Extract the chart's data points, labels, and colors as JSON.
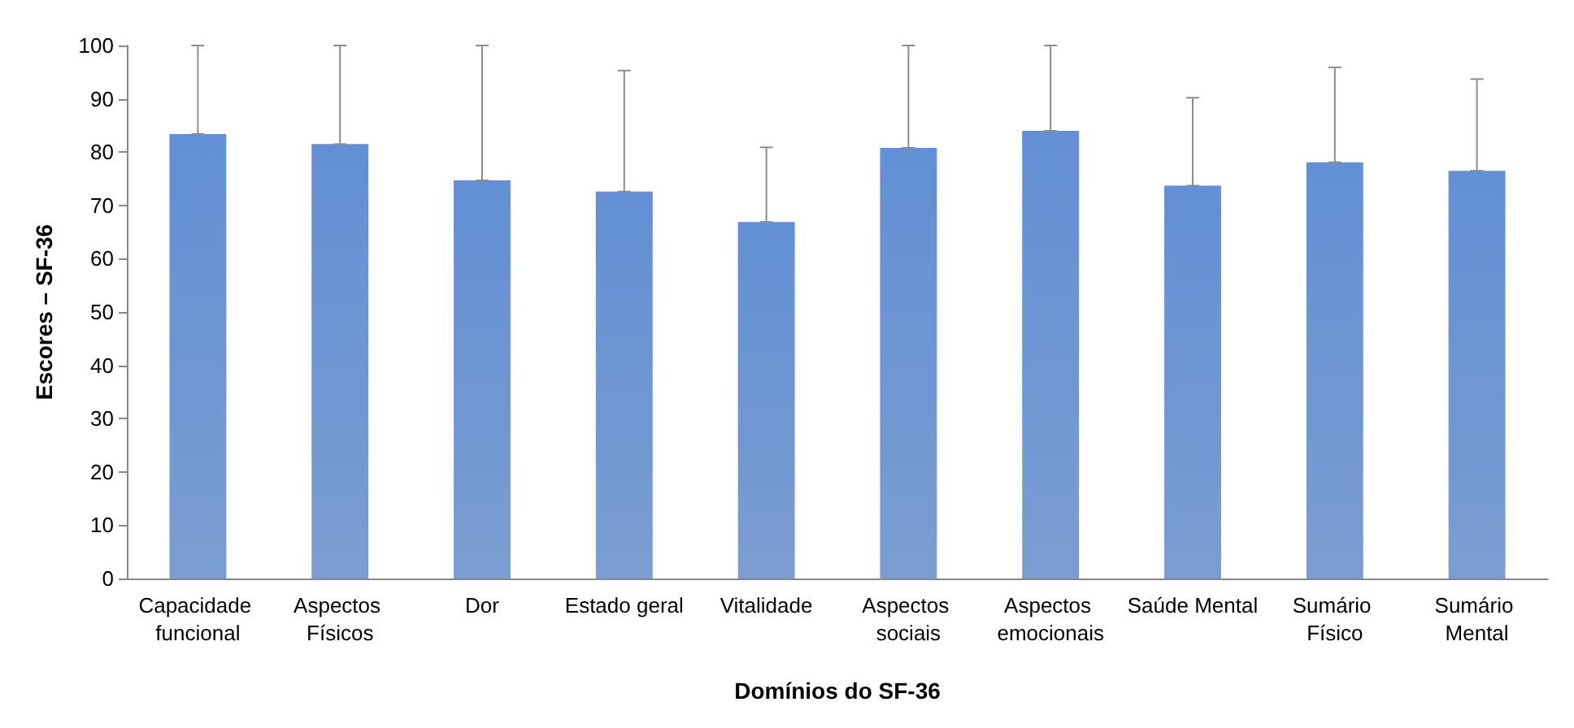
{
  "chart_data": {
    "type": "bar",
    "xlabel": "Domínios do SF-36",
    "ylabel": "Escores – SF-36",
    "categories": [
      "Capacidade funcional",
      "Aspectos Físicos",
      "Dor",
      "Estado geral",
      "Vitalidade",
      "Aspectos sociais",
      "Aspectos emocionais",
      "Saúde Mental",
      "Sumário Físico",
      "Sumário Mental"
    ],
    "values": [
      83.4,
      81.5,
      74.7,
      72.6,
      66.9,
      80.8,
      84.0,
      73.7,
      78.1,
      76.5
    ],
    "errors": [
      [
        83.4,
        100
      ],
      [
        81.5,
        100
      ],
      [
        74.7,
        100
      ],
      [
        72.6,
        95.3
      ],
      [
        66.9,
        80.9
      ],
      [
        80.8,
        100
      ],
      [
        84.0,
        100
      ],
      [
        73.7,
        90.2
      ],
      [
        78.1,
        95.9
      ],
      [
        76.5,
        93.7
      ]
    ],
    "color": "#5b85c6",
    "ylim": [
      0,
      100
    ],
    "yticks": [
      0,
      10,
      20,
      30,
      40,
      50,
      60,
      70,
      80,
      90,
      100
    ],
    "grid": false
  }
}
